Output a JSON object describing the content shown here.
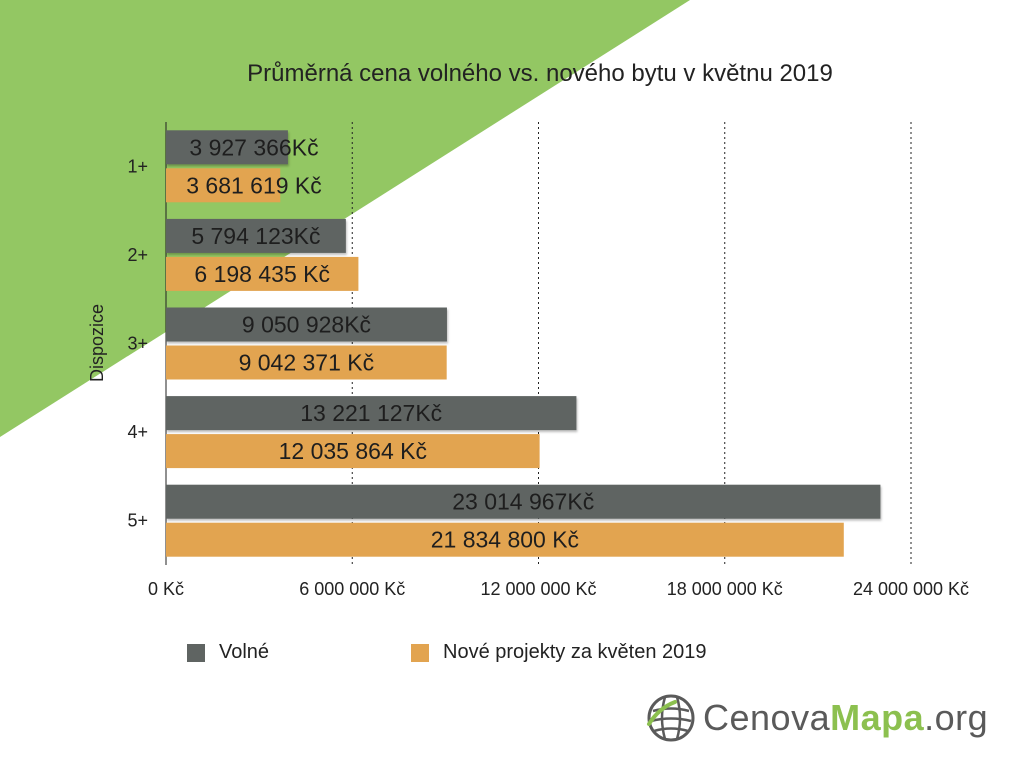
{
  "chart_data": {
    "type": "bar",
    "orientation": "horizontal",
    "title": "Průměrná cena volného vs. nového bytu v květnu 2019",
    "ylabel": "Dispozice",
    "xlabel": "",
    "categories": [
      "1+",
      "2+",
      "3+",
      "4+",
      "5+"
    ],
    "xlim": [
      0,
      24000000
    ],
    "x_ticks": [
      0,
      6000000,
      12000000,
      18000000,
      24000000
    ],
    "x_tick_labels": [
      "0 Kč",
      "6 000 000 Kč",
      "12 000 000 Kč",
      "18 000 000 Kč",
      "24 000 000 Kč"
    ],
    "grid": "vertical dotted",
    "legend_position": "bottom",
    "series": [
      {
        "name": "Volné",
        "color": "#5f6462",
        "values": [
          3927366,
          5794123,
          9050928,
          13221127,
          23014967
        ],
        "labels": [
          "3 927 366Kč",
          "5 794 123Kč",
          "9 050 928Kč",
          "13 221 127Kč",
          "23 014 967Kč"
        ]
      },
      {
        "name": "Nové projekty za květen 2019",
        "color": "#e2a450",
        "values": [
          3681619,
          6198435,
          9042371,
          12035864,
          21834800
        ],
        "labels": [
          "3 681 619 Kč",
          "6 198 435 Kč",
          "9 042 371 Kč",
          "12 035 864 Kč",
          "21 834 800 Kč"
        ]
      }
    ]
  },
  "logo": {
    "part1": "Cenova",
    "part2": "Mapa",
    "part3": ".org"
  },
  "colors": {
    "background_accent": "#93c763",
    "logo_accent": "#8cc04f"
  },
  "icons": {
    "logo": "globe-grid-icon"
  }
}
